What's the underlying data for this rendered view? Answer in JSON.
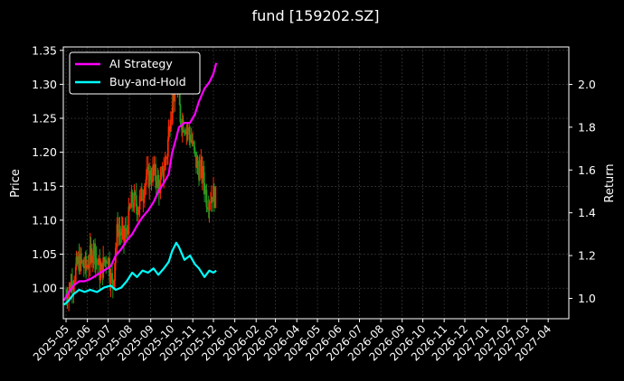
{
  "chart_data": {
    "type": "line",
    "title": "fund [159202.SZ]",
    "ylabel_left": "Price",
    "ylabel_right": "Return",
    "grid": true,
    "legend_position": "top-left",
    "colors": {
      "background": "#000000",
      "ai_strategy": "#ff00ff",
      "buy_and_hold": "#00ffff",
      "candle_up": "#ff2a00",
      "candle_down": "#1f9e1f",
      "grid": "#444444"
    },
    "x_ticks": [
      "2025-05",
      "2025-06",
      "2025-07",
      "2025-08",
      "2025-09",
      "2025-10",
      "2025-11",
      "2025-12",
      "2026-01",
      "2026-02",
      "2026-03",
      "2026-04",
      "2026-05",
      "2026-06",
      "2026-07",
      "2026-08",
      "2026-09",
      "2026-10",
      "2026-11",
      "2026-12",
      "2027-01",
      "2027-02",
      "2027-03",
      "2027-04"
    ],
    "y_left": {
      "ticks": [
        "1.00",
        "1.05",
        "1.10",
        "1.15",
        "1.20",
        "1.25",
        "1.30",
        "1.35"
      ],
      "range": [
        0.955,
        1.355
      ]
    },
    "y_right": {
      "ticks": [
        "1.0",
        "1.2",
        "1.4",
        "1.6",
        "1.8",
        "2.0"
      ],
      "range": [
        0.905,
        2.175
      ]
    },
    "x_range": [
      "2025-04-27",
      "2027-05-01"
    ],
    "price_series": {
      "name": "Price",
      "x": [
        "2025-05-01",
        "2025-05-10",
        "2025-05-20",
        "2025-05-30",
        "2025-06-10",
        "2025-06-20",
        "2025-06-30",
        "2025-07-08",
        "2025-07-15",
        "2025-07-25",
        "2025-08-05",
        "2025-08-15",
        "2025-08-25",
        "2025-09-05",
        "2025-09-15",
        "2025-09-25",
        "2025-10-01",
        "2025-10-08",
        "2025-10-15",
        "2025-10-22",
        "2025-10-30",
        "2025-11-07",
        "2025-11-15",
        "2025-11-22",
        "2025-11-30",
        "2025-12-05"
      ],
      "values": [
        0.99,
        1.01,
        1.04,
        1.03,
        1.06,
        1.02,
        1.05,
        1.0,
        1.09,
        1.07,
        1.13,
        1.12,
        1.16,
        1.17,
        1.15,
        1.2,
        1.27,
        1.3,
        1.25,
        1.24,
        1.22,
        1.18,
        1.17,
        1.13,
        1.14,
        1.13
      ]
    },
    "series": [
      {
        "name": "AI Strategy",
        "x": [
          "2025-04-28",
          "2025-05-05",
          "2025-05-12",
          "2025-05-20",
          "2025-05-28",
          "2025-06-05",
          "2025-06-15",
          "2025-06-25",
          "2025-07-05",
          "2025-07-12",
          "2025-07-20",
          "2025-07-28",
          "2025-08-05",
          "2025-08-12",
          "2025-08-20",
          "2025-08-28",
          "2025-09-05",
          "2025-09-12",
          "2025-09-20",
          "2025-09-27",
          "2025-10-02",
          "2025-10-08",
          "2025-10-12",
          "2025-10-20",
          "2025-10-28",
          "2025-11-04",
          "2025-11-10",
          "2025-11-18",
          "2025-11-25",
          "2025-12-01",
          "2025-12-05"
        ],
        "values": [
          0.99,
          1.03,
          1.06,
          1.08,
          1.08,
          1.09,
          1.11,
          1.13,
          1.15,
          1.2,
          1.23,
          1.27,
          1.3,
          1.34,
          1.38,
          1.41,
          1.45,
          1.5,
          1.54,
          1.58,
          1.68,
          1.75,
          1.8,
          1.82,
          1.82,
          1.86,
          1.92,
          1.98,
          2.01,
          2.05,
          2.1
        ]
      },
      {
        "name": "Buy-and-Hold",
        "x": [
          "2025-04-28",
          "2025-05-05",
          "2025-05-12",
          "2025-05-20",
          "2025-05-28",
          "2025-06-05",
          "2025-06-15",
          "2025-06-25",
          "2025-07-05",
          "2025-07-12",
          "2025-07-20",
          "2025-07-28",
          "2025-08-05",
          "2025-08-12",
          "2025-08-20",
          "2025-08-28",
          "2025-09-05",
          "2025-09-12",
          "2025-09-20",
          "2025-09-27",
          "2025-10-02",
          "2025-10-08",
          "2025-10-12",
          "2025-10-20",
          "2025-10-28",
          "2025-11-04",
          "2025-11-10",
          "2025-11-18",
          "2025-11-25",
          "2025-12-01",
          "2025-12-05"
        ],
        "values": [
          0.97,
          0.99,
          1.02,
          1.04,
          1.03,
          1.04,
          1.03,
          1.05,
          1.06,
          1.04,
          1.05,
          1.08,
          1.12,
          1.1,
          1.13,
          1.12,
          1.14,
          1.11,
          1.14,
          1.17,
          1.22,
          1.26,
          1.24,
          1.18,
          1.2,
          1.16,
          1.14,
          1.1,
          1.13,
          1.12,
          1.13
        ]
      }
    ]
  }
}
